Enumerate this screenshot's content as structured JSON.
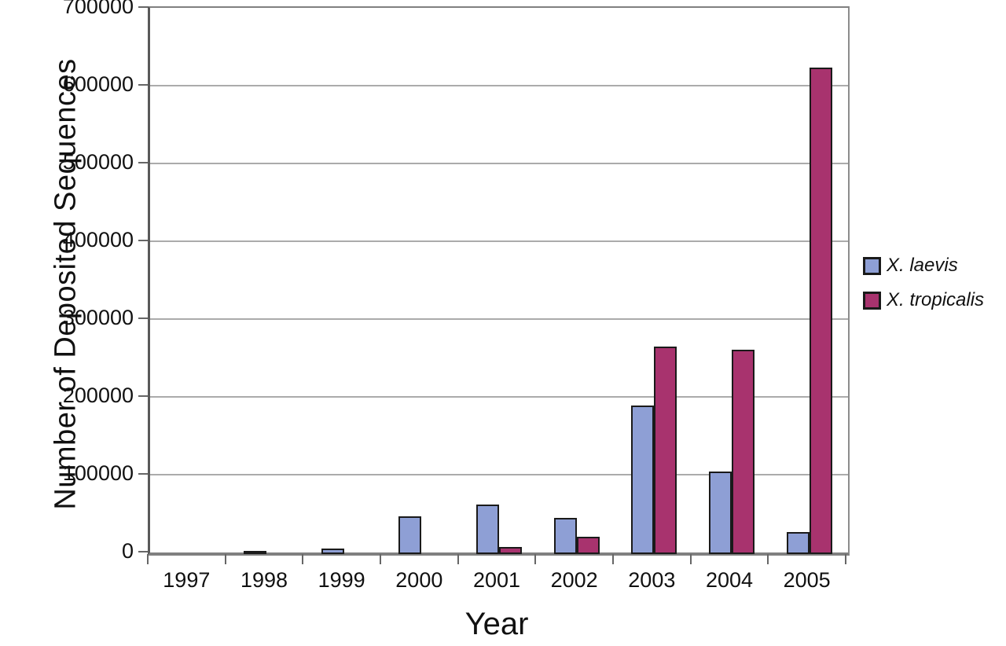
{
  "chart_data": {
    "type": "bar",
    "title": "",
    "xlabel": "Year",
    "ylabel": "Number of Deposited Sequences",
    "categories": [
      "1997",
      "1998",
      "1999",
      "2000",
      "2001",
      "2002",
      "2003",
      "2004",
      "2005"
    ],
    "series": [
      {
        "name": "X. laevis",
        "color": "#8e9fd5",
        "values": [
          0,
          2000,
          7000,
          48000,
          64000,
          46000,
          191000,
          106000,
          28000
        ]
      },
      {
        "name": "X. tropicalis",
        "color": "#a8336e",
        "values": [
          0,
          0,
          0,
          0,
          9000,
          22000,
          267000,
          263000,
          625000
        ]
      }
    ],
    "ylim": [
      0,
      700000
    ],
    "y_tick_step": 100000,
    "y_ticks": [
      "700000",
      "600000",
      "500000",
      "400000",
      "300000",
      "200000",
      "100000",
      "0"
    ],
    "grid": true,
    "legend_position": "right",
    "bar_outline_color": "#1a1a1a",
    "gridline_color": "#ababab",
    "axis_tick_color": "#666666"
  }
}
